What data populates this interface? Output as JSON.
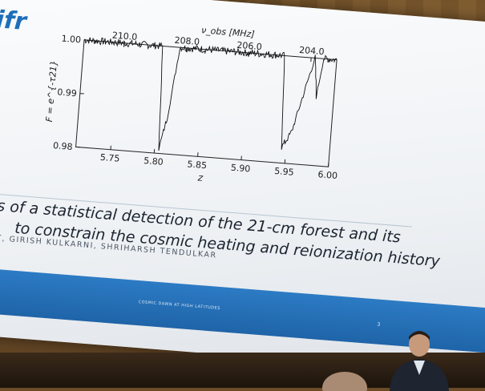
{
  "slide": {
    "logo": "ifr",
    "title_line1": "s of a statistical detection of the 21-cm forest and its",
    "title_line2": "to constrain the cosmic heating and reionization history",
    "authors": "T, GIRISH KULKARNI, SHRIHARSH TENDULKAR",
    "footer": "COSMIC DAWN AT HIGH LATITUDES",
    "page_number": "3"
  },
  "chart_data": {
    "type": "line",
    "xlabel": "z",
    "ylabel": "F = e^{-τ21}",
    "top_axis_label": "ν_obs [MHz]",
    "xlim": [
      5.71,
      6.0
    ],
    "ylim": [
      0.98,
      1.0
    ],
    "x_ticks": [
      "5.75",
      "5.80",
      "5.85",
      "5.90",
      "5.95",
      "6.00"
    ],
    "y_ticks": [
      "0.98",
      "0.99",
      "1.00"
    ],
    "top_ticks": [
      "210.0",
      "208.0",
      "206.0",
      "204.0"
    ],
    "series": [
      {
        "x": [
          5.71,
          5.8,
          5.805,
          5.812,
          5.82,
          5.94,
          5.945,
          5.952,
          5.955,
          5.975,
          5.98,
          5.985,
          6.0
        ],
        "y": [
          1.0,
          1.0,
          0.981,
          0.987,
          1.0,
          1.0,
          0.983,
          0.985,
          0.986,
          1.0,
          0.993,
          1.0,
          1.0
        ]
      }
    ]
  }
}
